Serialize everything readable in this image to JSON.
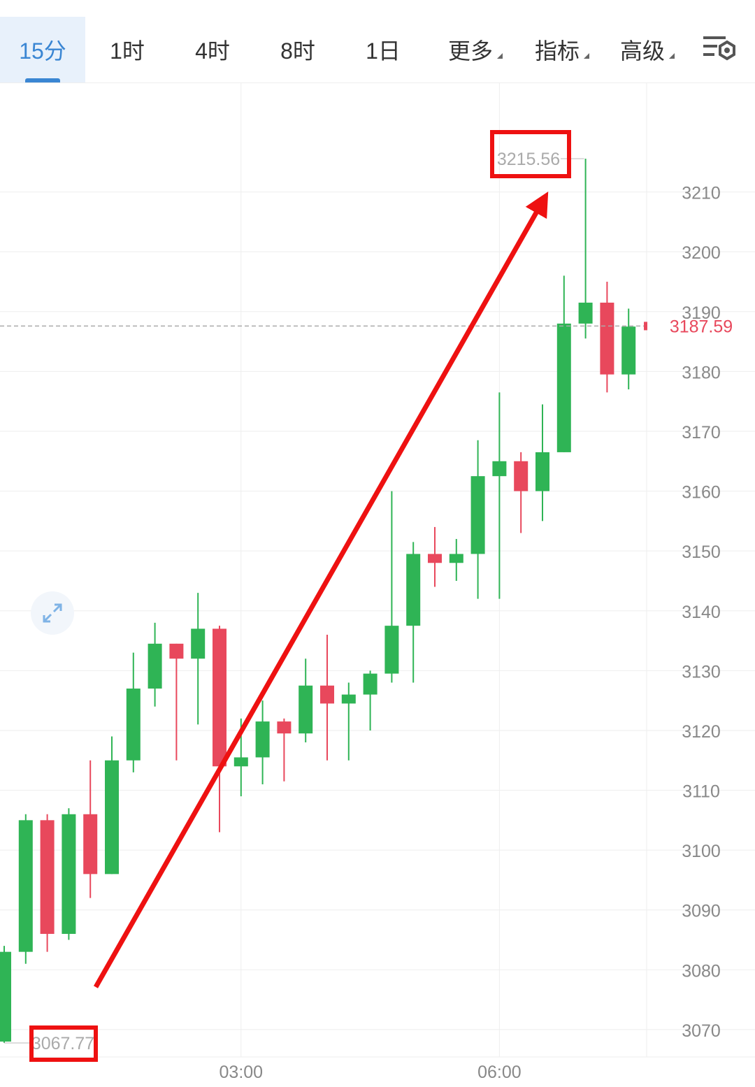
{
  "tabs": [
    {
      "label": "15分",
      "active": true
    },
    {
      "label": "1时",
      "active": false
    },
    {
      "label": "4时",
      "active": false
    },
    {
      "label": "8时",
      "active": false
    },
    {
      "label": "1日",
      "active": false
    },
    {
      "label": "更多",
      "active": false,
      "dropdown": true
    },
    {
      "label": "指标",
      "active": false,
      "dropdown": true
    },
    {
      "label": "高级",
      "active": false,
      "dropdown": true
    }
  ],
  "icons": {
    "settings": "settings-icon",
    "expand": "expand-icon"
  },
  "colors": {
    "up": "#2fb455",
    "down": "#e8485c",
    "accent": "#3a86d3",
    "annotation": "#ee1111",
    "grid": "#eeeeee"
  },
  "chart_data": {
    "type": "candlestick",
    "ylim": [
      3063,
      3226
    ],
    "y_ticks": [
      3070,
      3080,
      3090,
      3100,
      3110,
      3120,
      3130,
      3140,
      3150,
      3160,
      3170,
      3180,
      3190,
      3200,
      3210
    ],
    "x_tick_labels": [
      {
        "label": "03:00",
        "index": 11
      },
      {
        "label": "06:00",
        "index": 23
      }
    ],
    "current_price": "3187.59",
    "high_label": {
      "text": "3215.56",
      "value": 3215.56,
      "index": 27
    },
    "low_label": {
      "text": "3067.77",
      "value": 3067.77,
      "index": 0
    },
    "candles": [
      {
        "o": 3068.0,
        "h": 3084.0,
        "l": 3067.8,
        "c": 3083.0
      },
      {
        "o": 3083.0,
        "h": 3106.0,
        "l": 3081.0,
        "c": 3105.0
      },
      {
        "o": 3105.0,
        "h": 3106.0,
        "l": 3083.0,
        "c": 3086.0
      },
      {
        "o": 3086.0,
        "h": 3107.0,
        "l": 3085.0,
        "c": 3106.0
      },
      {
        "o": 3106.0,
        "h": 3115.0,
        "l": 3092.0,
        "c": 3096.0
      },
      {
        "o": 3096.0,
        "h": 3119.0,
        "l": 3096.0,
        "c": 3115.0
      },
      {
        "o": 3115.0,
        "h": 3133.0,
        "l": 3113.0,
        "c": 3127.0
      },
      {
        "o": 3127.0,
        "h": 3138.0,
        "l": 3124.0,
        "c": 3134.5
      },
      {
        "o": 3134.5,
        "h": 3134.5,
        "l": 3115.0,
        "c": 3132.0
      },
      {
        "o": 3132.0,
        "h": 3143.0,
        "l": 3121.0,
        "c": 3137.0
      },
      {
        "o": 3137.0,
        "h": 3137.5,
        "l": 3103.0,
        "c": 3114.0
      },
      {
        "o": 3114.0,
        "h": 3122.0,
        "l": 3109.0,
        "c": 3115.5
      },
      {
        "o": 3115.5,
        "h": 3125.0,
        "l": 3111.0,
        "c": 3121.5
      },
      {
        "o": 3121.5,
        "h": 3122.0,
        "l": 3111.5,
        "c": 3119.5
      },
      {
        "o": 3119.5,
        "h": 3132.0,
        "l": 3118.0,
        "c": 3127.5
      },
      {
        "o": 3127.5,
        "h": 3136.0,
        "l": 3115.0,
        "c": 3124.5
      },
      {
        "o": 3124.5,
        "h": 3128.0,
        "l": 3115.0,
        "c": 3126.0
      },
      {
        "o": 3126.0,
        "h": 3130.0,
        "l": 3120.0,
        "c": 3129.5
      },
      {
        "o": 3129.5,
        "h": 3160.0,
        "l": 3128.0,
        "c": 3137.5
      },
      {
        "o": 3137.5,
        "h": 3151.5,
        "l": 3128.0,
        "c": 3149.5
      },
      {
        "o": 3149.5,
        "h": 3154.0,
        "l": 3144.0,
        "c": 3148.0
      },
      {
        "o": 3148.0,
        "h": 3152.0,
        "l": 3145.0,
        "c": 3149.5
      },
      {
        "o": 3149.5,
        "h": 3168.5,
        "l": 3142.0,
        "c": 3162.5
      },
      {
        "o": 3162.5,
        "h": 3176.5,
        "l": 3142.0,
        "c": 3165.0
      },
      {
        "o": 3165.0,
        "h": 3166.5,
        "l": 3153.0,
        "c": 3160.0
      },
      {
        "o": 3160.0,
        "h": 3174.5,
        "l": 3155.0,
        "c": 3166.5
      },
      {
        "o": 3166.5,
        "h": 3196.0,
        "l": 3166.5,
        "c": 3188.0
      },
      {
        "o": 3188.0,
        "h": 3215.56,
        "l": 3185.5,
        "c": 3191.5
      },
      {
        "o": 3191.5,
        "h": 3195.0,
        "l": 3176.5,
        "c": 3179.5
      },
      {
        "o": 3179.5,
        "h": 3190.5,
        "l": 3177.0,
        "c": 3187.5
      }
    ]
  }
}
